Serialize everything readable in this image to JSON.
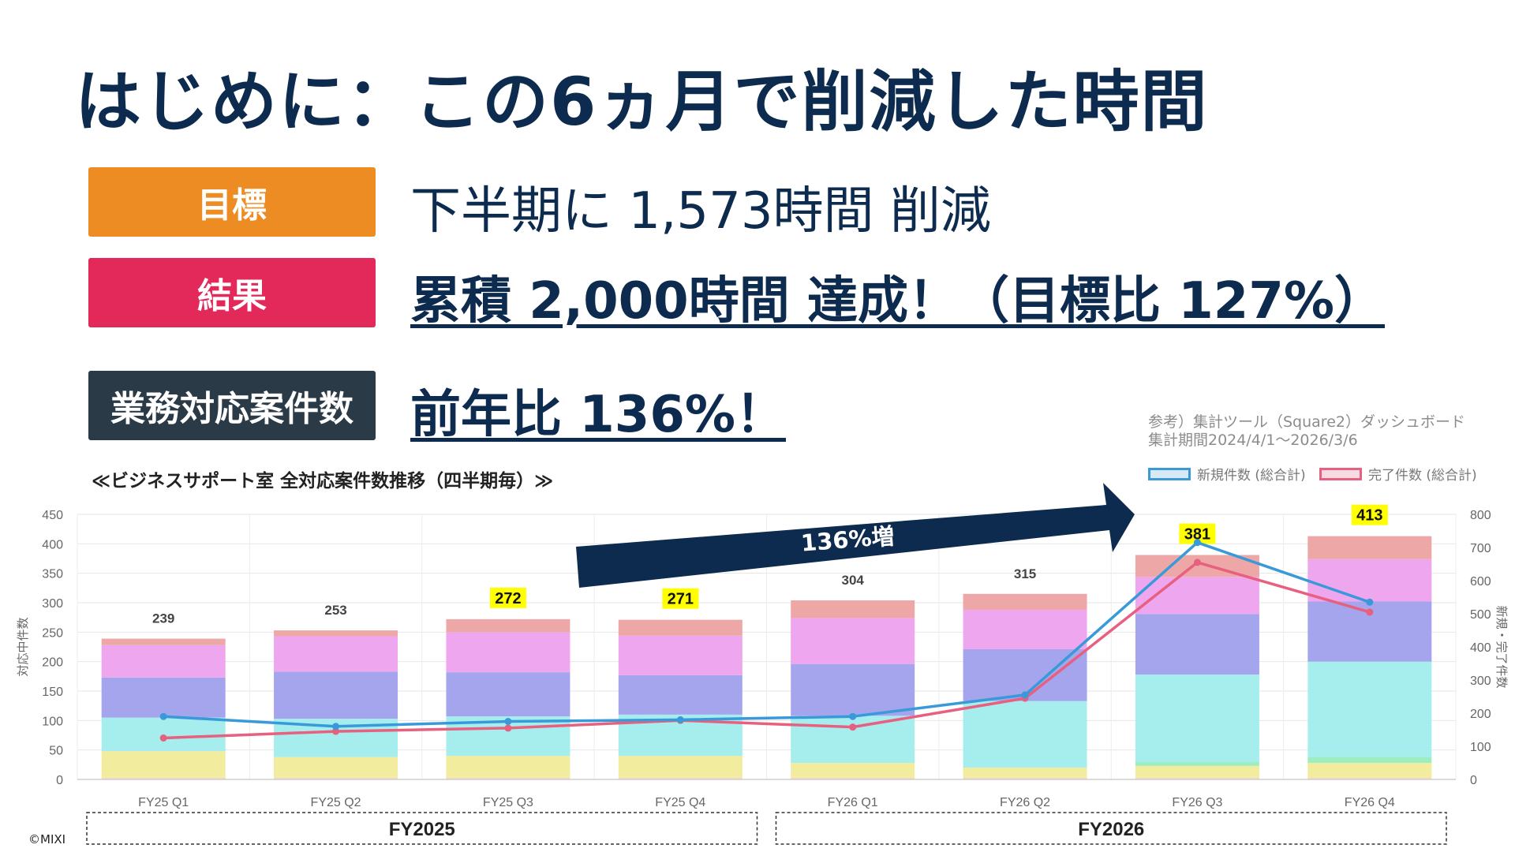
{
  "title": "はじめに：この6ヵ月で削減した時間",
  "rows": {
    "goal": {
      "label": "目標",
      "color": "#ec8c22",
      "text": "下半期に 1,573時間 削減"
    },
    "result": {
      "label": "結果",
      "color": "#e3285a",
      "text": "累積 2,000時間 達成！（目標比 127%）"
    },
    "cases": {
      "label": "業務対応案件数",
      "color": "#2b3a47",
      "text": "前年比 136%！"
    }
  },
  "reference": {
    "line1": "参考）集計ツール（Square2）ダッシュボード",
    "line2": "集計期間2024/4/1～2026/3/6"
  },
  "legend": {
    "new": {
      "label": "新規件数 (総合計)",
      "color": "#3a9ad9"
    },
    "done": {
      "label": "完了件数 (総合計)",
      "color": "#e8607f"
    }
  },
  "copyright": "©MIXI",
  "chart_data": {
    "type": "bar",
    "title": "≪ビジネスサポート室 全対応案件数推移（四半期毎）≫",
    "categories": [
      "FY25 Q1",
      "FY25 Q2",
      "FY25 Q3",
      "FY25 Q4",
      "FY26 Q1",
      "FY26 Q2",
      "FY26 Q3",
      "FY26 Q4"
    ],
    "totals": [
      "239",
      "253",
      "272",
      "271",
      "304",
      "315",
      "381",
      "413"
    ],
    "highlighted": [
      false,
      false,
      true,
      true,
      false,
      false,
      true,
      true
    ],
    "stack_colors": [
      "#f6d6c4",
      "#f2ec9e",
      "#9cedc0",
      "#a6eeee",
      "#a5a5ee",
      "#eea6ee",
      "#eea7a7"
    ],
    "stacks": [
      [
        3,
        45,
        0,
        57,
        68,
        55,
        11
      ],
      [
        3,
        35,
        0,
        65,
        80,
        60,
        10
      ],
      [
        3,
        37,
        0,
        67,
        75,
        68,
        22
      ],
      [
        3,
        37,
        0,
        70,
        67,
        67,
        27
      ],
      [
        3,
        25,
        0,
        80,
        88,
        78,
        30
      ],
      [
        3,
        17,
        0,
        113,
        88,
        67,
        27
      ],
      [
        3,
        20,
        7,
        148,
        103,
        63,
        37
      ],
      [
        3,
        25,
        10,
        162,
        102,
        72,
        39
      ]
    ],
    "new_cases": [
      190,
      160,
      175,
      180,
      190,
      255,
      715,
      535
    ],
    "done_cases": [
      125,
      145,
      155,
      178,
      158,
      245,
      655,
      505
    ],
    "ylabel_left": "対応中件数",
    "ylabel_right": "新規・完了件数",
    "ylim_left": [
      0,
      450
    ],
    "yticks_left": [
      "0",
      "50",
      "100",
      "150",
      "200",
      "250",
      "300",
      "350",
      "400",
      "450"
    ],
    "ylim_right": [
      0,
      800
    ],
    "yticks_right": [
      "0",
      "100",
      "200",
      "300",
      "400",
      "500",
      "600",
      "700",
      "800"
    ],
    "groups": [
      {
        "label": "FY2025",
        "from": 0,
        "to": 3
      },
      {
        "label": "FY2026",
        "from": 4,
        "to": 7
      }
    ],
    "arrow_label": "136%増",
    "grid": true
  }
}
